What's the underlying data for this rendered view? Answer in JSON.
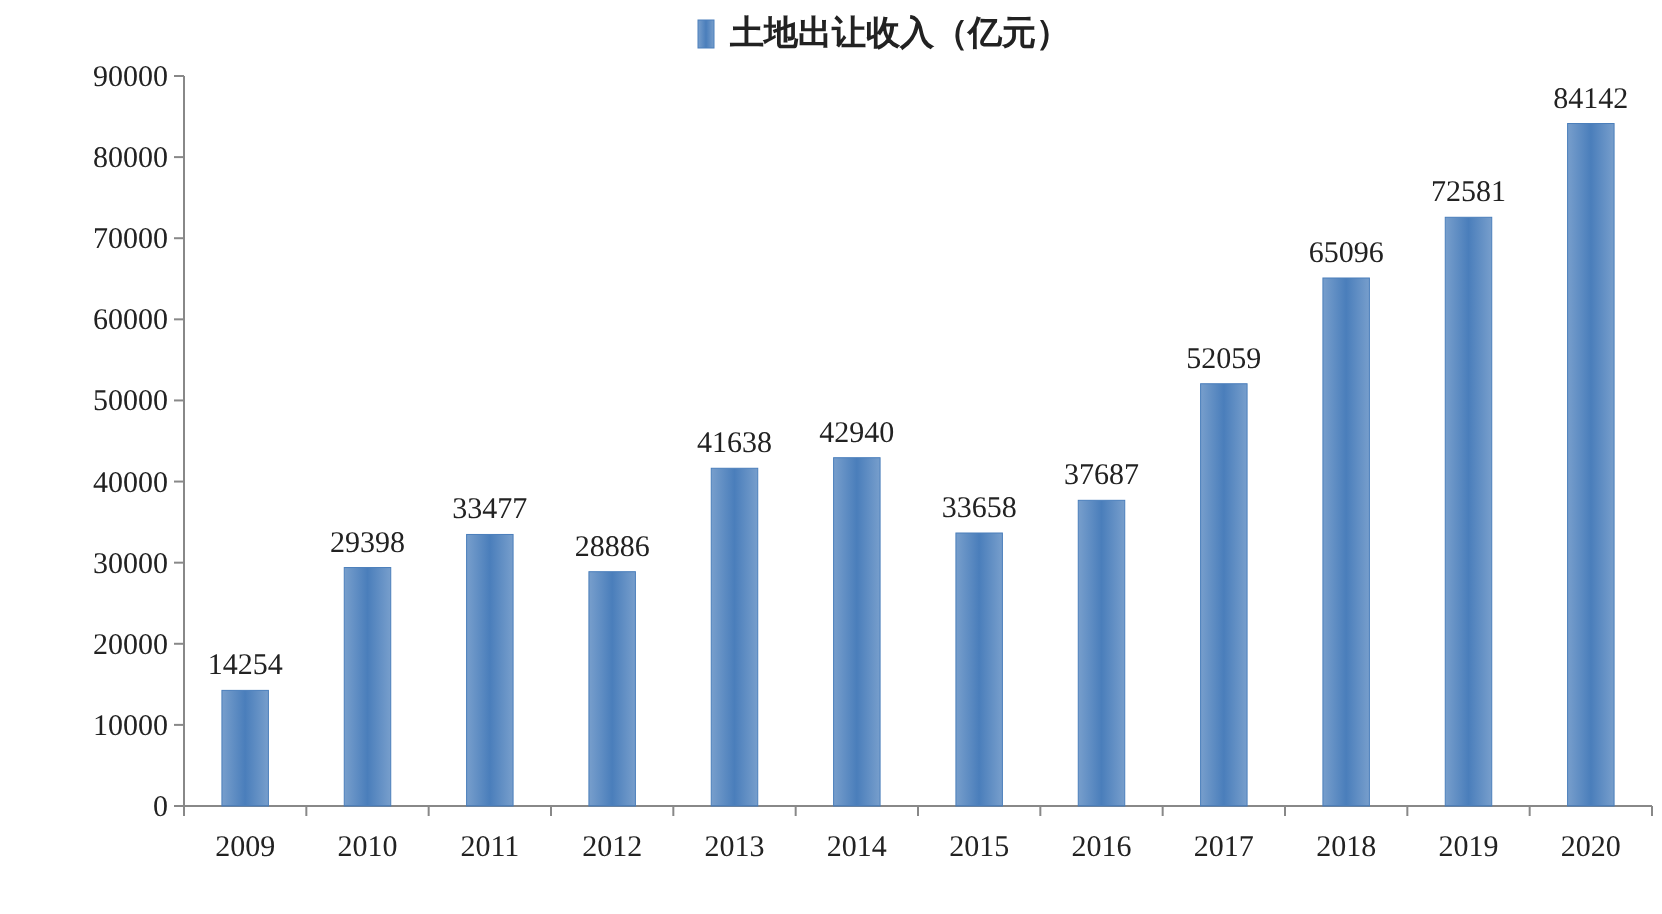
{
  "chart_data": {
    "type": "bar",
    "categories": [
      "2009",
      "2010",
      "2011",
      "2012",
      "2013",
      "2014",
      "2015",
      "2016",
      "2017",
      "2018",
      "2019",
      "2020"
    ],
    "series": [
      {
        "name": "土地出让收入（亿元）",
        "color": "#4a7ebb",
        "values": [
          14254,
          29398,
          33477,
          28886,
          41638,
          42940,
          33658,
          37687,
          52059,
          65096,
          72581,
          84142
        ]
      }
    ],
    "ylim": [
      0,
      90000
    ],
    "yticks": [
      0,
      10000,
      20000,
      30000,
      40000,
      50000,
      60000,
      70000,
      80000,
      90000
    ],
    "data_labels": true,
    "legend": "top"
  }
}
